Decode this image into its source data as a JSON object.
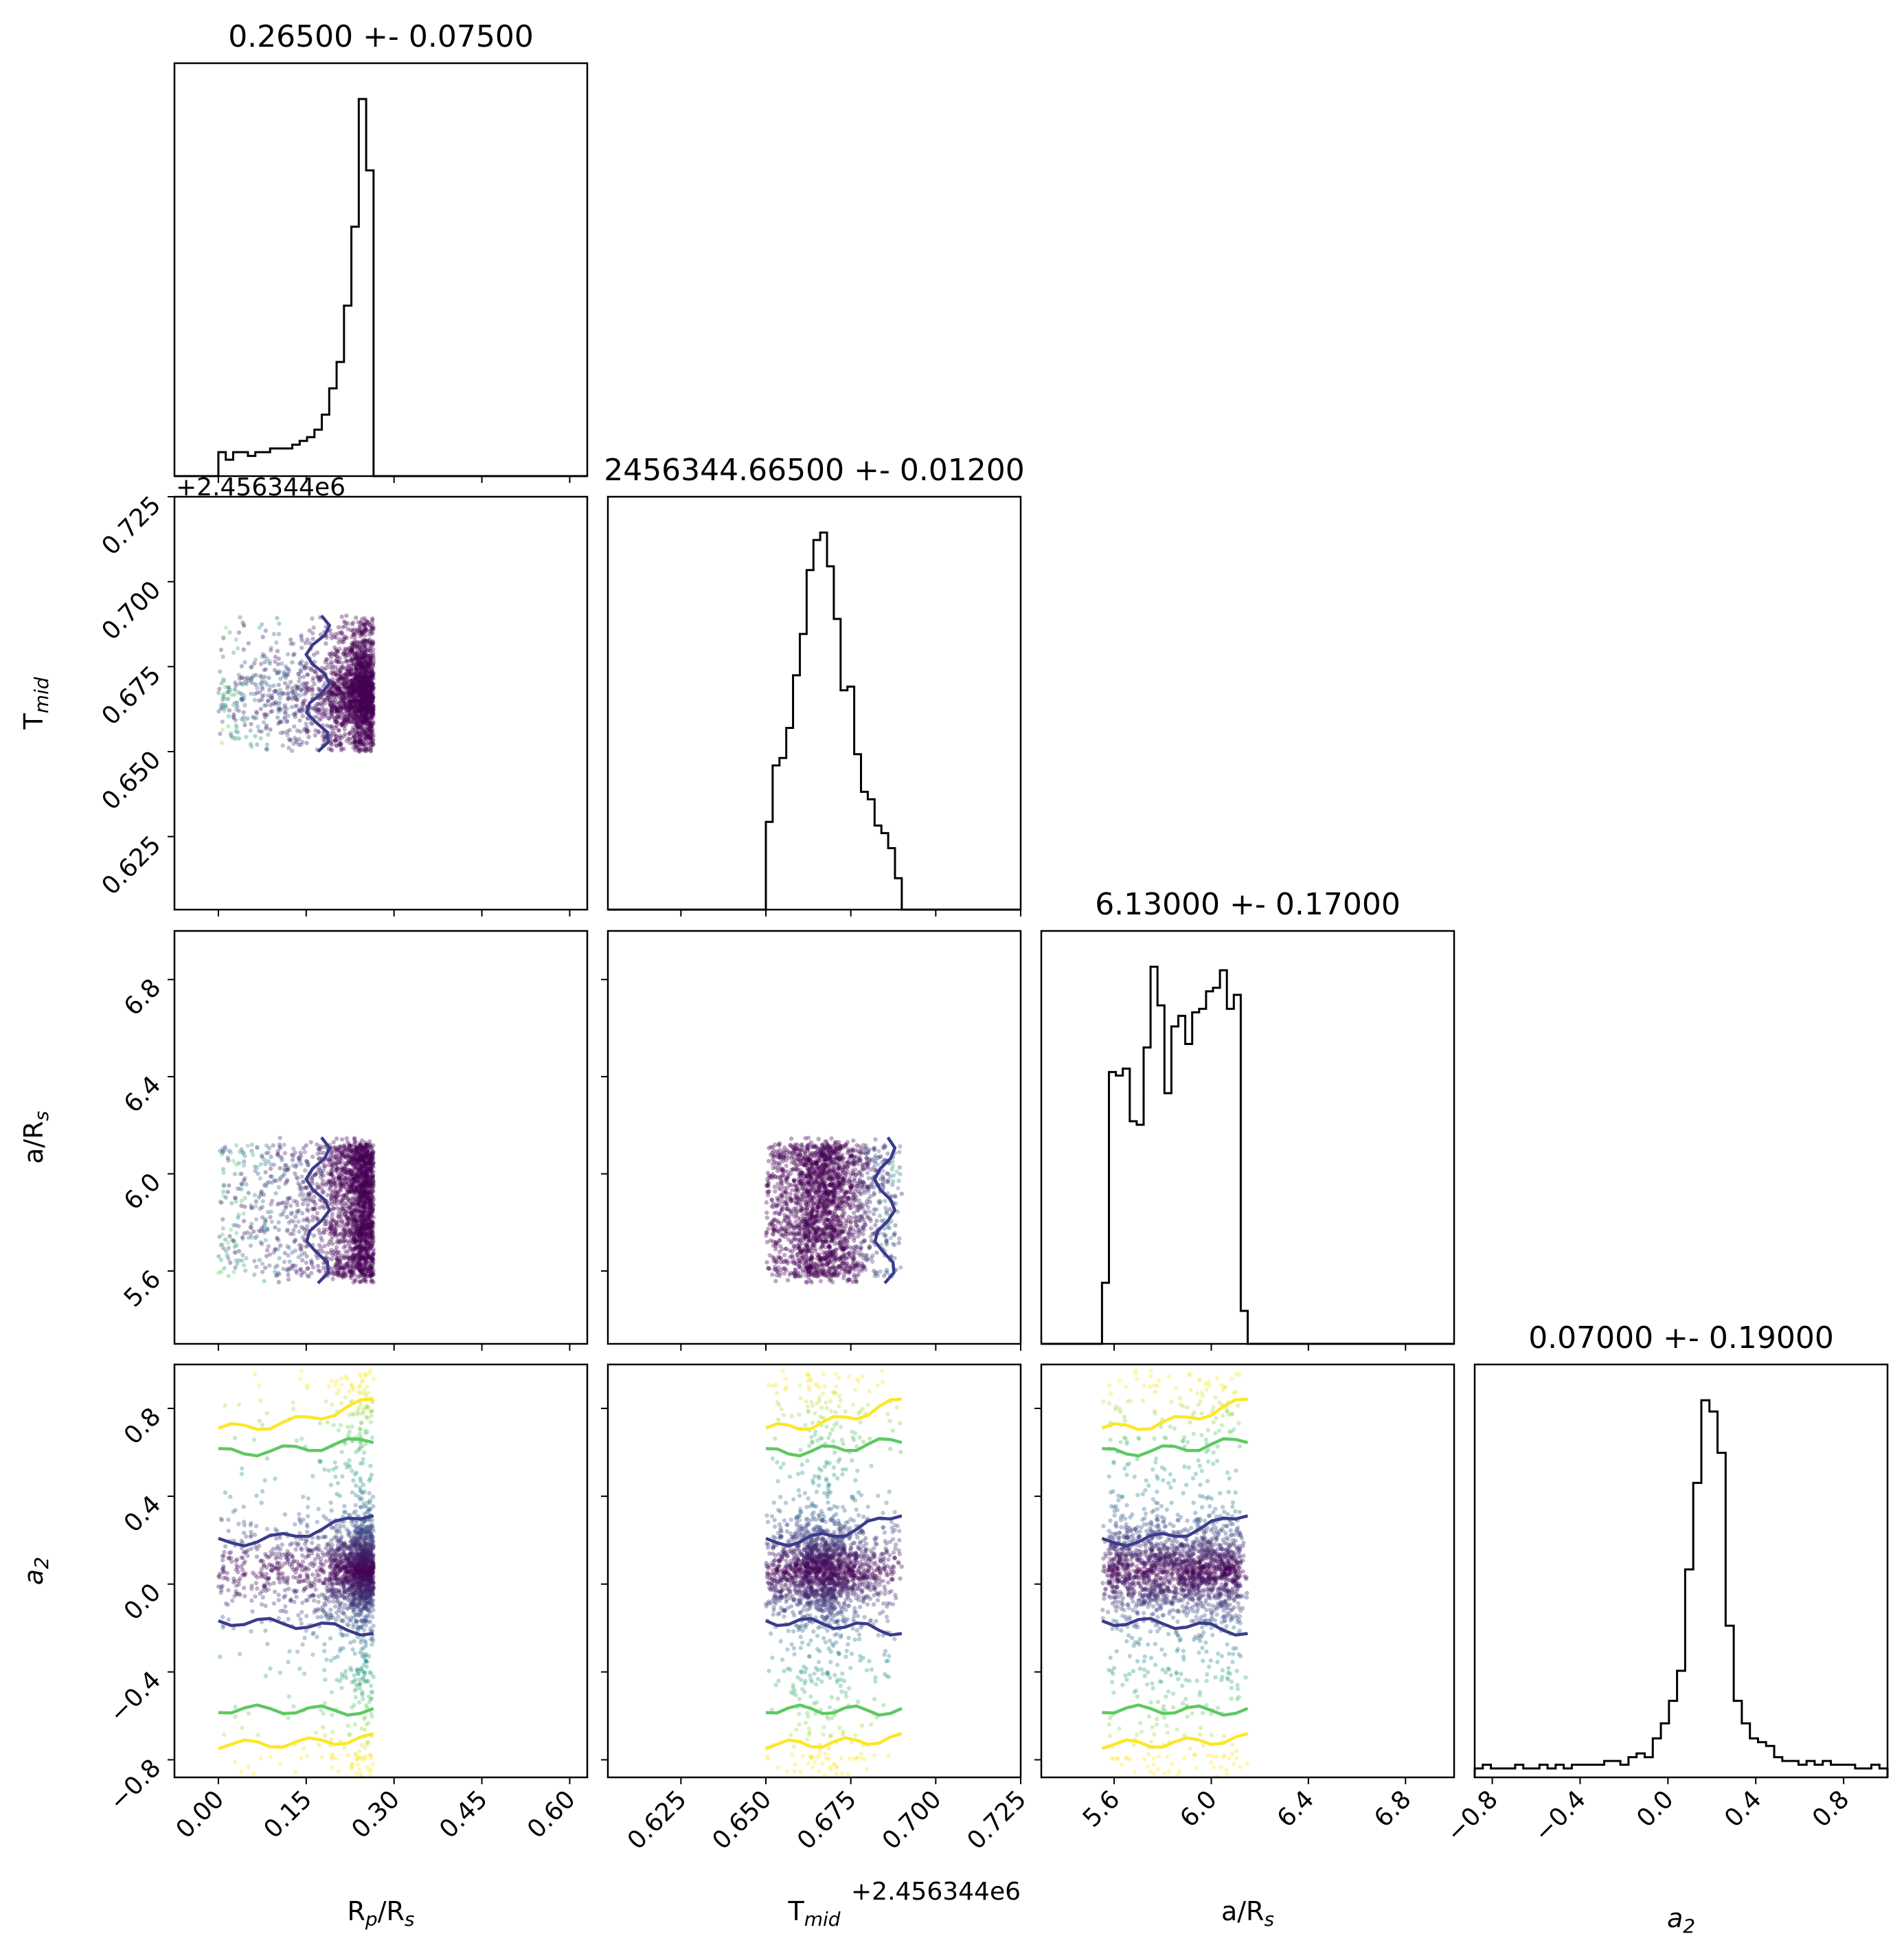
{
  "chart_data": {
    "type": "scatter",
    "subtype": "corner-plot",
    "colors": {
      "hist_line": "#000000",
      "scatter_low": "#440154",
      "scatter_high": "#fde725",
      "contour_inner": "#3b3b8a",
      "contour_mid": "#5ec962",
      "contour_outer": "#fde725"
    },
    "parameters": [
      {
        "key": "rp",
        "title": "0.26500 +- 0.07500",
        "label_main": "R",
        "label_sub": "p",
        "label_tail": "/R",
        "label_sub2": "s",
        "range": [
          -0.075,
          0.63
        ],
        "ticks": [
          0.0,
          0.15,
          0.3,
          0.45,
          0.6
        ],
        "tick_labels": [
          "0.00",
          "0.15",
          "0.30",
          "0.45",
          "0.60"
        ],
        "sample_range": [
          0.0,
          0.265
        ],
        "hist_y": [
          0.06,
          0.04,
          0.06,
          0.06,
          0.05,
          0.06,
          0.06,
          0.07,
          0.07,
          0.07,
          0.08,
          0.09,
          0.1,
          0.12,
          0.16,
          0.23,
          0.3,
          0.45,
          0.66,
          1.0,
          0.81
        ]
      },
      {
        "key": "tmid",
        "title": "2456344.66500 +- 0.01200",
        "label_main": "T",
        "label_sub": "mid",
        "offset_text": "+2.456344e6",
        "range": [
          0.6035,
          0.725
        ],
        "ticks": [
          0.625,
          0.65,
          0.675,
          0.7,
          0.725
        ],
        "tick_labels": [
          "0.625",
          "0.650",
          "0.675",
          "0.700",
          "0.725"
        ],
        "sample_range": [
          0.65,
          0.69
        ],
        "hist_y": [
          0.23,
          0.38,
          0.4,
          0.48,
          0.62,
          0.73,
          0.9,
          0.98,
          1.0,
          0.91,
          0.77,
          0.58,
          0.59,
          0.41,
          0.31,
          0.29,
          0.22,
          0.2,
          0.16,
          0.08
        ]
      },
      {
        "key": "ars",
        "title": "6.13000 +- 0.17000",
        "label_main": "a/R",
        "label_sub": "s",
        "range": [
          5.3,
          7.0
        ],
        "ticks": [
          5.6,
          6.0,
          6.4,
          6.8
        ],
        "tick_labels": [
          "5.6",
          "6.0",
          "6.4",
          "6.8"
        ],
        "sample_range": [
          5.55,
          6.15
        ],
        "hist_y": [
          0.17,
          0.77,
          0.76,
          0.78,
          0.63,
          0.62,
          0.84,
          1.07,
          0.96,
          0.71,
          0.9,
          0.93,
          0.85,
          0.94,
          0.95,
          1.0,
          1.01,
          1.06,
          0.95,
          0.99,
          0.09
        ]
      },
      {
        "key": "a2",
        "title": "0.07000 +- 0.19000",
        "label_main": "a",
        "label_sub": "2",
        "italic": true,
        "range": [
          -0.88,
          1.0
        ],
        "ticks": [
          -0.8,
          -0.4,
          0.0,
          0.4,
          0.8
        ],
        "tick_labels": [
          "−0.8",
          "−0.4",
          "0.0",
          "0.4",
          "0.8"
        ],
        "sample_range": [
          -0.88,
          1.0
        ],
        "hist_y": [
          0.02,
          0.03,
          0.02,
          0.02,
          0.02,
          0.03,
          0.02,
          0.02,
          0.03,
          0.02,
          0.03,
          0.02,
          0.03,
          0.03,
          0.03,
          0.03,
          0.04,
          0.04,
          0.03,
          0.05,
          0.06,
          0.05,
          0.1,
          0.14,
          0.2,
          0.28,
          0.55,
          0.78,
          1.0,
          0.97,
          0.86,
          0.4,
          0.2,
          0.14,
          0.1,
          0.09,
          0.08,
          0.05,
          0.04,
          0.04,
          0.03,
          0.04,
          0.03,
          0.04,
          0.03,
          0.03,
          0.03,
          0.02,
          0.02,
          0.03,
          0.02
        ]
      }
    ]
  }
}
